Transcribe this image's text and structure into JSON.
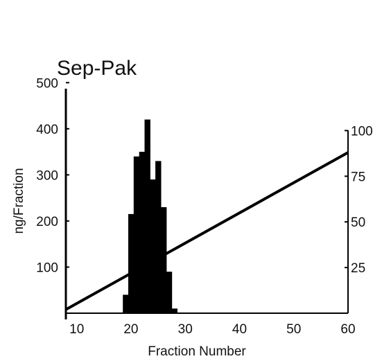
{
  "chart_data": {
    "type": "bar",
    "title": "Sep-Pak",
    "xlabel": "Fraction Number",
    "ylabel": "ng/Fraction",
    "y2label": "",
    "xlim": [
      8,
      60
    ],
    "ylim": [
      0,
      520
    ],
    "y2lim": [
      0,
      107
    ],
    "grid": false,
    "legend": "none",
    "xticks": [
      10,
      20,
      30,
      40,
      50,
      60
    ],
    "yticks": [
      100,
      200,
      300,
      400,
      500
    ],
    "y2ticks": [
      25,
      50,
      75,
      100
    ],
    "bar_color": "#000000",
    "line_color": "#000000",
    "series": [
      {
        "type": "bar",
        "x": [
          19,
          20,
          21,
          22,
          23,
          24,
          25,
          26,
          27,
          28
        ],
        "values": [
          40,
          215,
          340,
          350,
          420,
          290,
          330,
          230,
          90,
          10
        ]
      },
      {
        "type": "line",
        "axis": "right",
        "x": [
          8,
          60
        ],
        "values": [
          2,
          88
        ]
      }
    ]
  }
}
